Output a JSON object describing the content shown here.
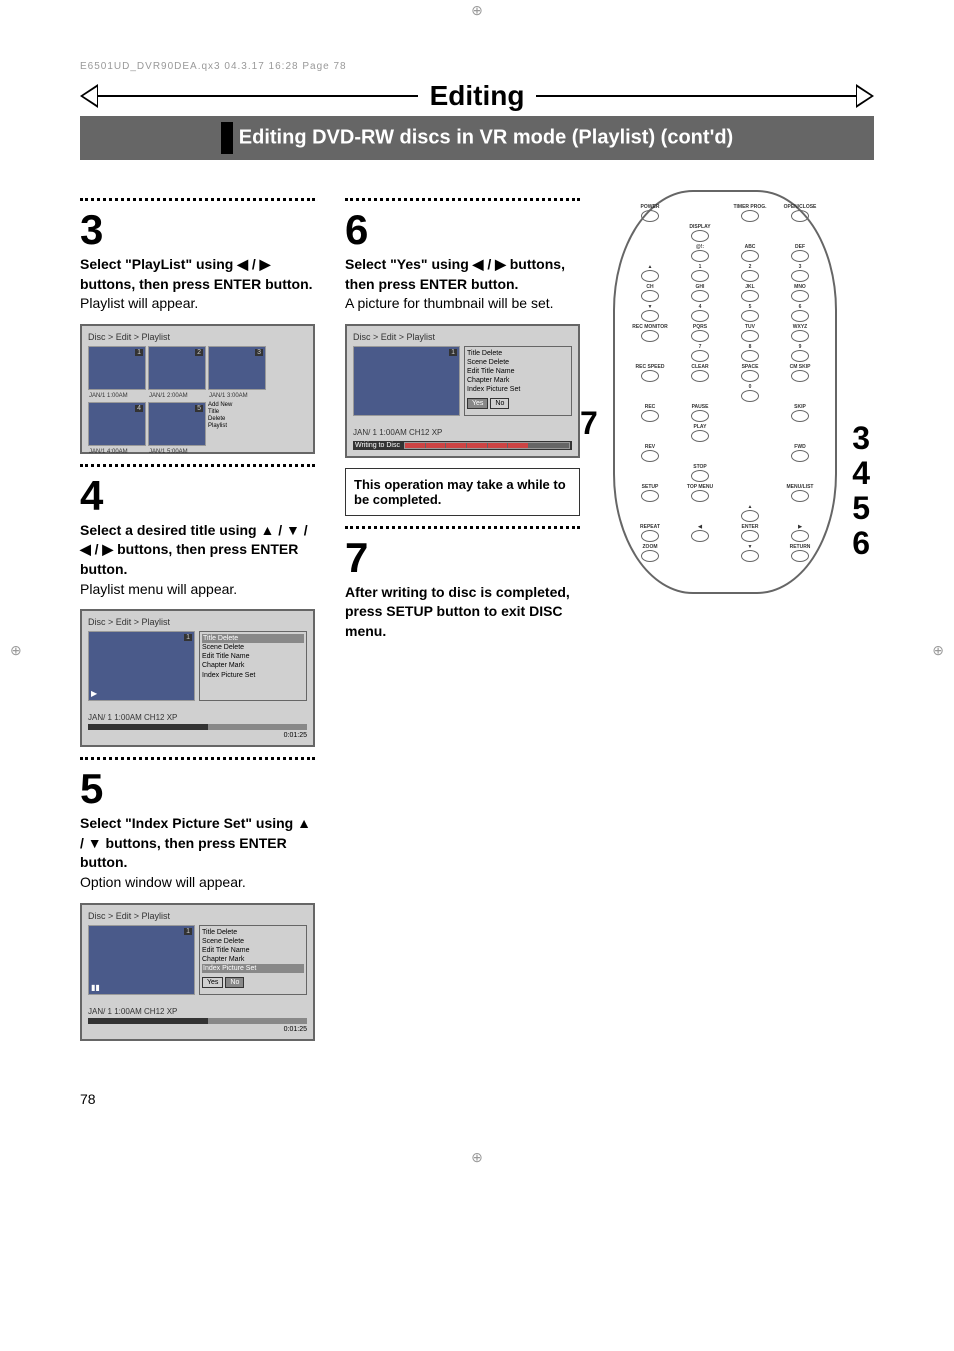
{
  "doc_header": "E6501UD_DVR90DEA.qx3  04.3.17  16:28  Page 78",
  "title": "Editing",
  "subtitle": "Editing DVD-RW discs in VR mode (Playlist) (cont'd)",
  "page_number": "78",
  "steps": {
    "s3": {
      "num": "3",
      "bold": "Select \"PlayList\" using ◀ / ▶ buttons, then press ENTER button.",
      "plain": "Playlist will appear."
    },
    "s4": {
      "num": "4",
      "bold": "Select a desired title using ▲ / ▼ / ◀ / ▶ buttons, then press ENTER button.",
      "plain": "Playlist menu will appear."
    },
    "s5": {
      "num": "5",
      "bold": "Select \"Index Picture Set\" using ▲ / ▼ buttons, then press ENTER button.",
      "plain": "Option window will appear."
    },
    "s6": {
      "num": "6",
      "bold": "Select \"Yes\" using ◀ / ▶ buttons, then press ENTER button.",
      "plain": "A picture for thumbnail will be set."
    },
    "s7": {
      "num": "7",
      "bold": "After writing to disc is completed, press SETUP button to exit DISC menu."
    }
  },
  "note": "This operation may take a while to be completed.",
  "osd": {
    "breadcrumb": "Disc > Edit > Playlist",
    "info_line": "JAN/ 1   1:00AM  CH12     XP",
    "time": "0:01:25",
    "thumbs": [
      {
        "n": "1",
        "cap": "JAN/1  1:00AM"
      },
      {
        "n": "2",
        "cap": "JAN/1  2:00AM"
      },
      {
        "n": "3",
        "cap": "JAN/1  3:00AM"
      },
      {
        "n": "4",
        "cap": "JAN/1  4:00AM"
      },
      {
        "n": "5",
        "cap": "JAN/1  5:00AM"
      }
    ],
    "add_menu": [
      "Add New",
      "Title",
      "Delete",
      "Playlist"
    ],
    "side_menu": [
      "Title Delete",
      "Scene Delete",
      "Edit Title Name",
      "Chapter Mark",
      "Index Picture Set"
    ],
    "yes": "Yes",
    "no": "No",
    "writing": "Writing to Disc"
  },
  "remote": {
    "rows": [
      [
        "POWER",
        "",
        "TIMER PROG.",
        "OPEN/CLOSE"
      ],
      [
        "",
        "DISPLAY",
        "",
        ""
      ],
      [
        "",
        "@!:",
        "ABC",
        "DEF"
      ],
      [
        "▲",
        "1",
        "2",
        "3"
      ],
      [
        "CH",
        "GHI",
        "JKL",
        "MNO"
      ],
      [
        "▼",
        "4",
        "5",
        "6"
      ],
      [
        "REC MONITOR",
        "PQRS",
        "TUV",
        "WXYZ"
      ],
      [
        "",
        "7",
        "8",
        "9"
      ],
      [
        "REC SPEED",
        "CLEAR",
        "SPACE",
        "CM SKIP"
      ],
      [
        "",
        "",
        "0",
        ""
      ],
      [
        "REC",
        "PAUSE",
        "",
        "SKIP"
      ],
      [
        "",
        "PLAY",
        "",
        ""
      ],
      [
        "REV",
        "",
        "",
        "FWD"
      ],
      [
        "",
        "STOP",
        "",
        ""
      ],
      [
        "SETUP",
        "TOP MENU",
        "",
        "MENU/LIST"
      ],
      [
        "",
        "",
        "▲",
        ""
      ],
      [
        "REPEAT",
        "◀",
        "ENTER",
        "▶"
      ],
      [
        "ZOOM",
        "",
        "▼",
        "RETURN"
      ]
    ],
    "callout_7": "7",
    "callouts_right": [
      "3",
      "4",
      "5",
      "6"
    ]
  },
  "colors": {
    "subtitle_bg": "#666666",
    "osd_bg": "#d0d0d0",
    "thumb_bg": "#4a5a8a"
  }
}
